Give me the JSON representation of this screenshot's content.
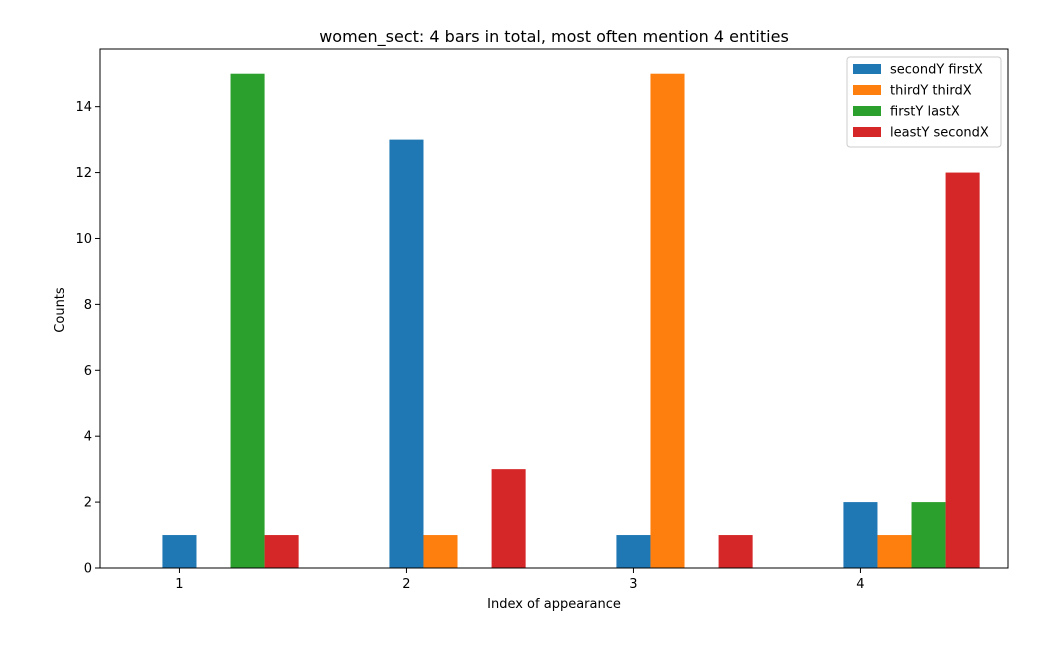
{
  "chart_data": {
    "type": "bar",
    "title": "women_sect: 4 bars in total, most often mention  4 entities",
    "xlabel": "Index of appearance",
    "ylabel": "Counts",
    "categories": [
      "1",
      "2",
      "3",
      "4"
    ],
    "ylim": [
      0,
      15.75
    ],
    "yticks": [
      0,
      2,
      4,
      6,
      8,
      10,
      12,
      14
    ],
    "grid": false,
    "legend_position": "top-right",
    "series": [
      {
        "name": "secondY firstX",
        "color": "#1f77b4",
        "values": [
          1,
          13,
          1,
          2
        ]
      },
      {
        "name": "thirdY thirdX",
        "color": "#ff7f0e",
        "values": [
          0,
          1,
          15,
          1
        ]
      },
      {
        "name": "firstY lastX",
        "color": "#2ca02c",
        "values": [
          15,
          0,
          0,
          2
        ]
      },
      {
        "name": "leastY secondX",
        "color": "#d62728",
        "values": [
          1,
          3,
          1,
          12
        ]
      }
    ]
  }
}
